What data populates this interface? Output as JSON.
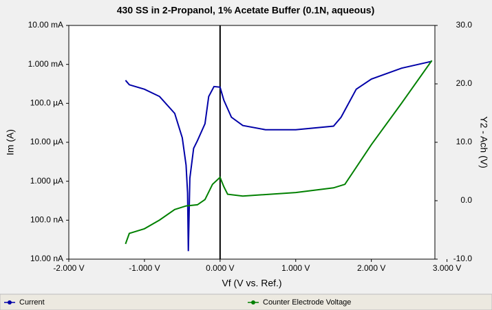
{
  "chart_data": {
    "type": "line",
    "title": "430 SS in 2-Propanol, 1% Acetate Buffer (0.1N, aqueous)",
    "x_label": "Vf (V vs. Ref.)",
    "y_label": "Im (A)",
    "y2_label": "Y2 - Ach (V)",
    "xlim": [
      -2.0,
      2.84
    ],
    "xticks": [
      {
        "value": -2,
        "label": "-2.000 V"
      },
      {
        "value": -1,
        "label": "-1.000 V"
      },
      {
        "value": 0,
        "label": "0.000 V"
      },
      {
        "value": 1,
        "label": "1.000 V"
      },
      {
        "value": 2,
        "label": "2.000 V"
      },
      {
        "value": 3,
        "label": "3.000 V"
      }
    ],
    "ylog": true,
    "ylim": [
      1e-08,
      0.01
    ],
    "yticks": [
      {
        "value": 0.01,
        "label": "10.00 mA"
      },
      {
        "value": 0.001,
        "label": "1.000 mA"
      },
      {
        "value": 0.0001,
        "label": "100.0 µA"
      },
      {
        "value": 1e-05,
        "label": "10.00 µA"
      },
      {
        "value": 1e-06,
        "label": "1.000 µA"
      },
      {
        "value": 1e-07,
        "label": "100.0 nA"
      },
      {
        "value": 1e-08,
        "label": "10.00 nA"
      }
    ],
    "y2lim": [
      -10,
      30
    ],
    "y2ticks": [
      {
        "value": 30,
        "label": "30.0"
      },
      {
        "value": 20,
        "label": "20.0"
      },
      {
        "value": 10,
        "label": "10.0"
      },
      {
        "value": 0,
        "label": "0.0"
      },
      {
        "value": -10,
        "label": "-10.0"
      }
    ],
    "series": [
      {
        "name": "Current",
        "color": "#0000a8",
        "x": [
          -1.25,
          -1.2,
          -1.0,
          -0.8,
          -0.6,
          -0.5,
          -0.45,
          -0.43,
          -0.42,
          -0.4,
          -0.35,
          -0.3,
          -0.2,
          -0.15,
          -0.08,
          0.0,
          0.05,
          0.15,
          0.3,
          0.6,
          1.0,
          1.5,
          1.6,
          1.8,
          2.0,
          2.4,
          2.8
        ],
        "values": [
          0.00039,
          0.0003,
          0.00023,
          0.00015,
          5.5e-05,
          1.3e-05,
          2.6e-06,
          5e-07,
          1.6e-08,
          1.2e-06,
          7e-06,
          1.1e-05,
          3e-05,
          0.00015,
          0.00027,
          0.00026,
          0.00012,
          4.4e-05,
          2.7e-05,
          2.1e-05,
          2.1e-05,
          2.6e-05,
          4.4e-05,
          0.00023,
          0.00042,
          0.0008,
          0.0012
        ]
      },
      {
        "name": "Counter Electrode Voltage",
        "color": "#008000",
        "axis": "y2",
        "x": [
          -1.25,
          -1.2,
          -1.0,
          -0.8,
          -0.6,
          -0.45,
          -0.3,
          -0.2,
          -0.1,
          0.0,
          0.05,
          0.1,
          0.3,
          1.0,
          1.5,
          1.65,
          2.0,
          2.4,
          2.8
        ],
        "values": [
          -7.4,
          -5.6,
          -4.8,
          -3.3,
          -1.5,
          -0.9,
          -0.7,
          0.2,
          2.8,
          4.0,
          2.4,
          1.1,
          0.8,
          1.4,
          2.2,
          2.8,
          9.6,
          16.7,
          24.0
        ]
      }
    ]
  }
}
